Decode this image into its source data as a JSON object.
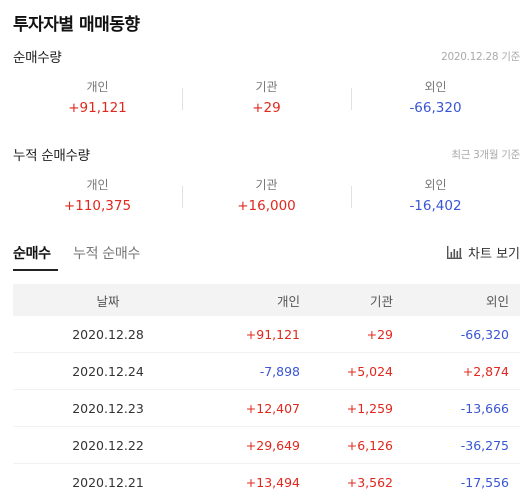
{
  "title": "투자자별 매매동향",
  "net_purchase": {
    "title": "순매수량",
    "note": "2020.12.28 기준",
    "individual": {
      "label": "개인",
      "value": "+91,121"
    },
    "institution": {
      "label": "기관",
      "value": "+29"
    },
    "foreign": {
      "label": "외인",
      "value": "-66,320"
    }
  },
  "cumulative": {
    "title": "누적 순매수량",
    "note": "최근 3개월 기준",
    "individual": {
      "label": "개인",
      "value": "+110,375"
    },
    "institution": {
      "label": "기관",
      "value": "+16,000"
    },
    "foreign": {
      "label": "외인",
      "value": "-16,402"
    }
  },
  "tabs": [
    {
      "label": "순매수",
      "active": true
    },
    {
      "label": "누적 순매수",
      "active": false
    }
  ],
  "chart_button": {
    "label": "차트 보기",
    "icon": "bar-chart-icon"
  },
  "table": {
    "headers": [
      "날짜",
      "개인",
      "기관",
      "외인"
    ],
    "rows": [
      [
        "2020.12.28",
        "+91,121",
        "+29",
        "-66,320"
      ],
      [
        "2020.12.24",
        "-7,898",
        "+5,024",
        "+2,874"
      ],
      [
        "2020.12.23",
        "+12,407",
        "+1,259",
        "-13,666"
      ],
      [
        "2020.12.22",
        "+29,649",
        "+6,126",
        "-36,275"
      ],
      [
        "2020.12.21",
        "+13,494",
        "+3,562",
        "-17,556"
      ]
    ]
  },
  "colors": {
    "up": "#e0281e",
    "down": "#3a56d4"
  }
}
